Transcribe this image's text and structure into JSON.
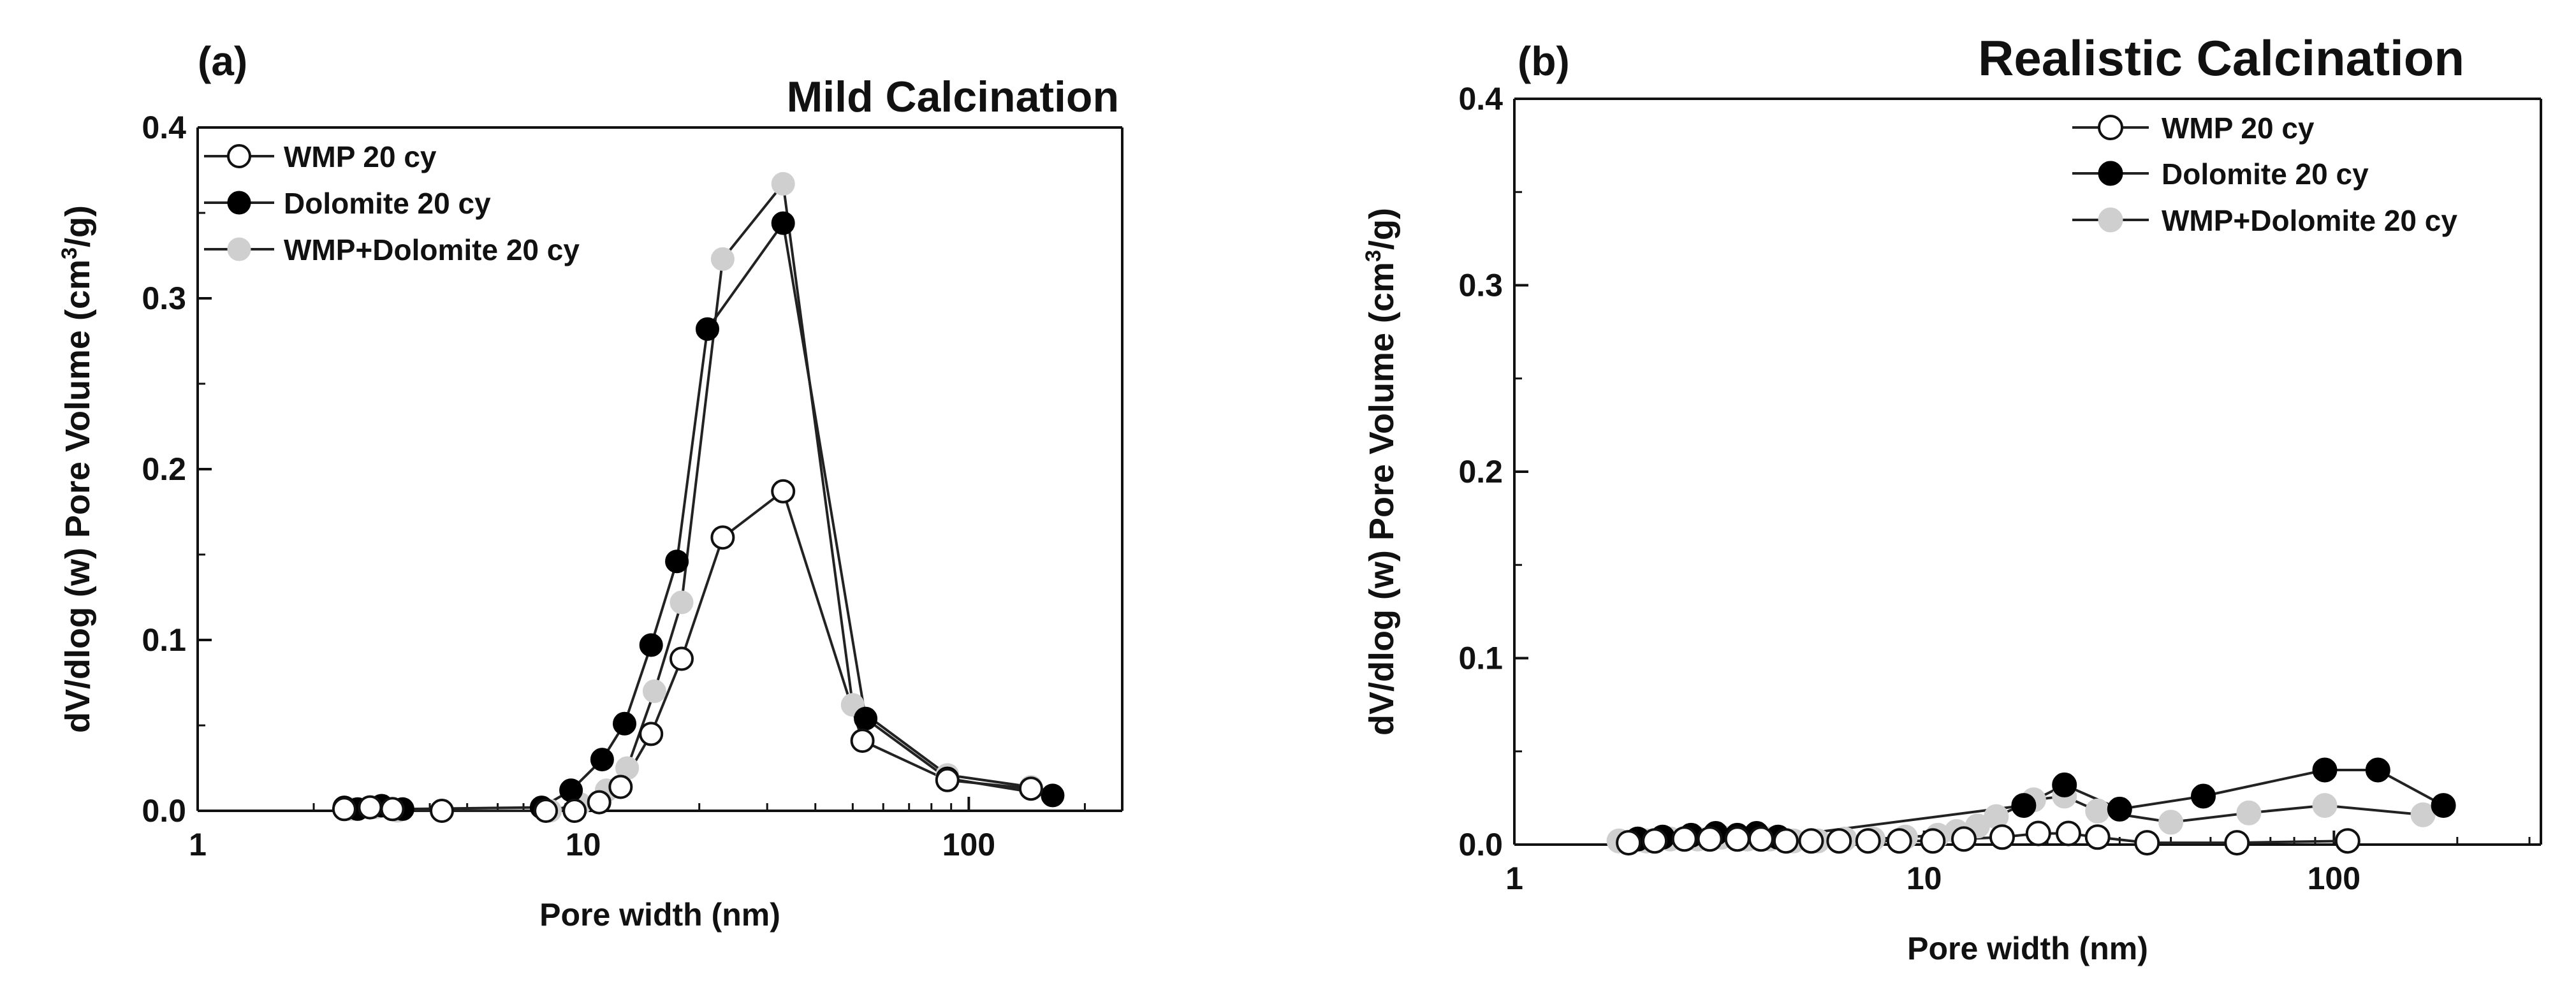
{
  "colors": {
    "axis": "#111111",
    "line": "#222222",
    "series_wmp_face": "#ffffff",
    "series_dolomite_face": "#000000",
    "series_mix_face": "#cfcfcf"
  },
  "chart_data": [
    {
      "type": "scatter",
      "panel_label": "(a)",
      "title": "Mild Calcination",
      "xlabel": "Pore width (nm)",
      "ylabel_main": "dV/dlog (w) Pore Volume (cm",
      "ylabel_sup": "3",
      "ylabel_tail": "/g)",
      "x_scale": "log",
      "xlim": [
        1,
        250
      ],
      "ylim": [
        0,
        0.4
      ],
      "x_ticks": [
        1,
        10,
        100
      ],
      "x_tick_labels": [
        "1",
        "10",
        "100"
      ],
      "y_ticks": [
        0,
        0.1,
        0.2,
        0.3,
        0.4
      ],
      "y_tick_labels": [
        "0.0",
        "0.1",
        "0.2",
        "0.3",
        "0.4"
      ],
      "grid": false,
      "legend_position": "top-left",
      "series": [
        {
          "name": "WMP 20 cy",
          "marker": "open-circle",
          "x": [
            2.4,
            2.8,
            3.2,
            4.3,
            8.0,
            9.5,
            11.0,
            12.5,
            15.0,
            18.0,
            23.0,
            33.0,
            53.0,
            88.0,
            145.0
          ],
          "y": [
            0.001,
            0.002,
            0.001,
            0.0,
            0.0,
            0.0,
            0.005,
            0.014,
            0.045,
            0.089,
            0.16,
            0.187,
            0.041,
            0.018,
            0.013
          ]
        },
        {
          "name": "Dolomite 20 cy",
          "marker": "filled-circle",
          "x": [
            2.4,
            2.6,
            3.0,
            3.4,
            7.8,
            9.3,
            11.2,
            12.8,
            15.0,
            17.5,
            21.0,
            33.0,
            54.0,
            88.0,
            165.0
          ],
          "y": [
            0.002,
            0.001,
            0.003,
            0.001,
            0.002,
            0.012,
            0.03,
            0.051,
            0.097,
            0.146,
            0.282,
            0.344,
            0.054,
            0.019,
            0.009
          ]
        },
        {
          "name": "WMP+Dolomite 20 cy",
          "marker": "gray-circle",
          "x": [
            2.5,
            2.9,
            3.3,
            8.2,
            9.8,
            11.5,
            13.0,
            15.3,
            18.0,
            23.0,
            33.0,
            50.0,
            88.0,
            145.0
          ],
          "y": [
            0.001,
            0.002,
            0.0,
            0.0,
            0.004,
            0.012,
            0.025,
            0.07,
            0.122,
            0.323,
            0.367,
            0.062,
            0.021,
            0.014
          ]
        }
      ]
    },
    {
      "type": "scatter",
      "panel_label": "(b)",
      "title": "Realistic Calcination",
      "xlabel": "Pore width (nm)",
      "ylabel_main": "dV/dlog (w) Pore Volume (cm",
      "ylabel_sup": "3",
      "ylabel_tail": "/g)",
      "x_scale": "log",
      "xlim": [
        1,
        320
      ],
      "ylim": [
        0,
        0.4
      ],
      "x_ticks": [
        1,
        10,
        100
      ],
      "x_tick_labels": [
        "1",
        "10",
        "100"
      ],
      "y_ticks": [
        0,
        0.1,
        0.2,
        0.3,
        0.4
      ],
      "y_tick_labels": [
        "0.0",
        "0.1",
        "0.2",
        "0.3",
        "0.4"
      ],
      "grid": false,
      "legend_position": "top-right",
      "series": [
        {
          "name": "WMP 20 cy",
          "marker": "open-circle",
          "x": [
            1.9,
            2.2,
            2.6,
            3.0,
            3.5,
            4.0,
            4.6,
            5.3,
            6.2,
            7.3,
            8.7,
            10.5,
            12.5,
            15.5,
            19.0,
            22.5,
            26.5,
            35.0,
            58.0,
            108.0
          ],
          "y": [
            0.001,
            0.002,
            0.003,
            0.003,
            0.003,
            0.003,
            0.002,
            0.002,
            0.002,
            0.002,
            0.002,
            0.002,
            0.003,
            0.004,
            0.006,
            0.006,
            0.004,
            0.001,
            0.001,
            0.002
          ]
        },
        {
          "name": "Dolomite 20 cy",
          "marker": "filled-circle",
          "x": [
            2.0,
            2.3,
            2.7,
            3.1,
            3.5,
            3.9,
            4.4,
            17.5,
            22.0,
            30.0,
            48.0,
            95.0,
            128.0,
            185.0
          ],
          "y": [
            0.003,
            0.004,
            0.005,
            0.006,
            0.005,
            0.006,
            0.004,
            0.021,
            0.032,
            0.019,
            0.026,
            0.04,
            0.04,
            0.021
          ]
        },
        {
          "name": "WMP+Dolomite 20 cy",
          "marker": "gray-circle",
          "x": [
            1.8,
            2.1,
            2.4,
            2.8,
            3.2,
            3.7,
            4.2,
            4.8,
            5.5,
            6.4,
            7.5,
            9.0,
            10.8,
            12.0,
            13.5,
            15.0,
            18.5,
            22.0,
            26.5,
            40.0,
            62.0,
            95.0,
            165.0
          ],
          "y": [
            0.002,
            0.002,
            0.003,
            0.003,
            0.004,
            0.003,
            0.003,
            0.002,
            0.002,
            0.003,
            0.003,
            0.004,
            0.005,
            0.007,
            0.01,
            0.015,
            0.024,
            0.026,
            0.018,
            0.012,
            0.017,
            0.021,
            0.016
          ]
        }
      ]
    }
  ]
}
